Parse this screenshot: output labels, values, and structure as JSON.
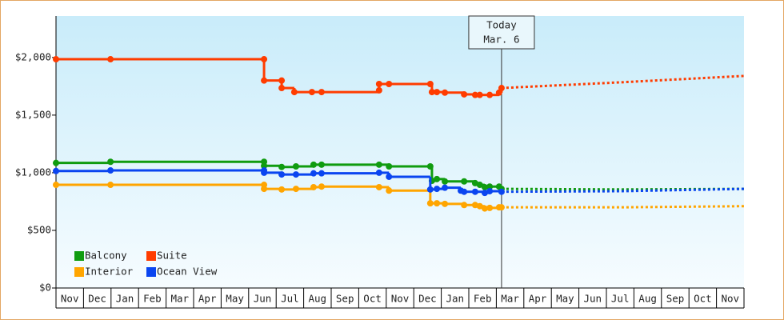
{
  "chart_data": {
    "type": "step-line",
    "xlim": [
      0,
      25
    ],
    "categories": [
      "Nov",
      "Dec",
      "Jan",
      "Feb",
      "Mar",
      "Apr",
      "May",
      "Jun",
      "Jul",
      "Aug",
      "Sep",
      "Oct",
      "Nov",
      "Dec",
      "Jan",
      "Feb",
      "Mar",
      "Apr",
      "May",
      "Jun",
      "Jul",
      "Aug",
      "Sep",
      "Oct",
      "Nov"
    ],
    "ylim": [
      0,
      2360
    ],
    "yticks": [
      {
        "value": 0,
        "label": "$0"
      },
      {
        "value": 500,
        "label": "$500"
      },
      {
        "value": 1000,
        "label": "$1,000"
      },
      {
        "value": 1500,
        "label": "$1,500"
      },
      {
        "value": 2000,
        "label": "$2,000"
      }
    ],
    "grid": false,
    "legend": "lower-left",
    "annotation": {
      "x": 16.19,
      "lines": [
        "Today",
        "Mar. 6"
      ]
    },
    "series": [
      {
        "name": "Balcony",
        "color": "#109c10",
        "x": [
          0,
          1.98,
          7.56,
          7.56,
          8.2,
          8.72,
          9.36,
          9.65,
          11.74,
          12.1,
          13.6,
          13.66,
          13.84,
          14.13,
          14.83,
          15.23,
          15.4,
          15.58,
          15.76,
          16.1,
          16.19
        ],
        "values": [
          1085,
          1095,
          1095,
          1060,
          1050,
          1055,
          1070,
          1070,
          1070,
          1055,
          1055,
          930,
          945,
          925,
          925,
          910,
          895,
          875,
          880,
          880,
          860
        ],
        "forecast_x": [
          16.19,
          20.55,
          25
        ],
        "forecast_values": [
          860,
          855,
          860
        ]
      },
      {
        "name": "Suite",
        "color": "#ff3c00",
        "x": [
          0,
          1.98,
          7.56,
          7.56,
          8.2,
          8.2,
          8.66,
          9.3,
          9.65,
          11.74,
          11.74,
          12.1,
          13.6,
          13.66,
          13.84,
          14.13,
          14.83,
          15.23,
          15.4,
          15.76,
          16.1,
          16.19
        ],
        "values": [
          1985,
          1985,
          1985,
          1800,
          1800,
          1735,
          1700,
          1700,
          1700,
          1715,
          1770,
          1770,
          1770,
          1700,
          1700,
          1695,
          1680,
          1675,
          1675,
          1675,
          1695,
          1735
        ],
        "forecast_x": [
          16.19,
          20.55,
          25
        ],
        "forecast_values": [
          1735,
          1785,
          1840
        ]
      },
      {
        "name": "Interior",
        "color": "#ffa500",
        "x": [
          0,
          1.98,
          7.56,
          7.56,
          8.2,
          8.72,
          9.36,
          9.65,
          11.74,
          12.1,
          13.6,
          13.84,
          14.13,
          14.83,
          15.23,
          15.4,
          15.58,
          15.76,
          16.1,
          16.19
        ],
        "values": [
          895,
          895,
          895,
          860,
          855,
          860,
          875,
          880,
          875,
          845,
          735,
          735,
          730,
          720,
          720,
          710,
          690,
          695,
          700,
          700
        ],
        "forecast_x": [
          16.19,
          20.55,
          25
        ],
        "forecast_values": [
          700,
          700,
          710
        ]
      },
      {
        "name": "Ocean View",
        "color": "#0a45f0",
        "x": [
          0,
          1.98,
          7.56,
          7.56,
          8.2,
          8.72,
          9.36,
          9.65,
          11.74,
          12.1,
          13.6,
          13.84,
          14.13,
          14.71,
          14.83,
          15.23,
          15.58,
          15.76,
          16.19
        ],
        "values": [
          1015,
          1020,
          1020,
          1000,
          985,
          985,
          995,
          995,
          1000,
          965,
          855,
          860,
          870,
          845,
          835,
          835,
          825,
          840,
          835
        ],
        "forecast_x": [
          16.19,
          20.55,
          25
        ],
        "forecast_values": [
          835,
          840,
          860
        ]
      }
    ]
  }
}
